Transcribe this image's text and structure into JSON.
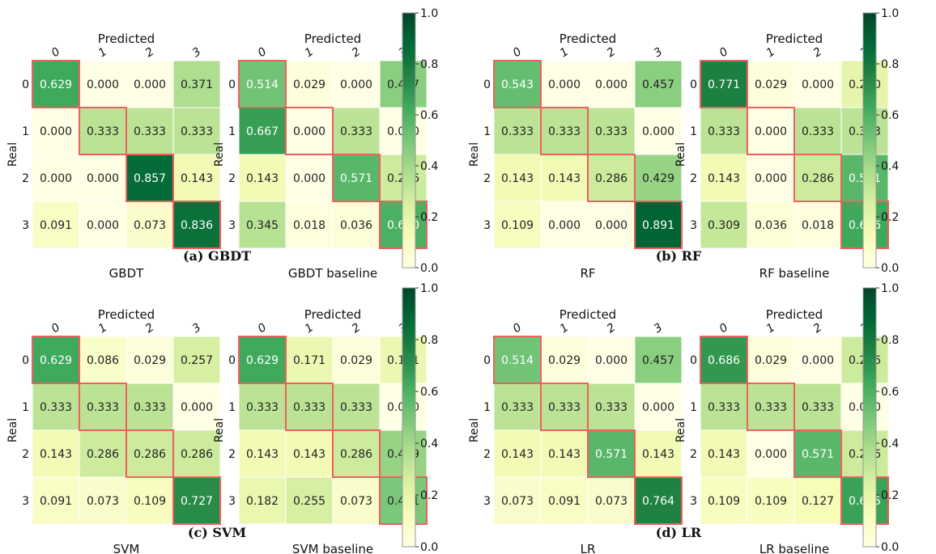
{
  "colorscale": {
    "low": "#ffffe5",
    "mid": "#78c679",
    "high": "#004529",
    "range": [
      0,
      1
    ],
    "ticks": [
      "0.0",
      "0.2",
      "0.4",
      "0.6",
      "0.8",
      "1.0"
    ],
    "tick_values": [
      0,
      0.2,
      0.4,
      0.6,
      0.8,
      1.0
    ]
  },
  "highlight_color": "#f06060",
  "chart_data": [
    {
      "type": "heatmap",
      "caption": "(a) GBDT",
      "matrices": [
        {
          "title": "GBDT",
          "xlabel": "Predicted",
          "ylabel": "Real",
          "x_ticks": [
            "0",
            "1",
            "2",
            "3"
          ],
          "y_ticks": [
            "0",
            "1",
            "2",
            "3"
          ],
          "values": [
            [
              0.629,
              0.0,
              0.0,
              0.371
            ],
            [
              0.0,
              0.333,
              0.333,
              0.333
            ],
            [
              0.0,
              0.0,
              0.857,
              0.143
            ],
            [
              0.091,
              0.0,
              0.073,
              0.836
            ]
          ],
          "labels": [
            [
              "0.629",
              "0.000",
              "0.000",
              "0.371"
            ],
            [
              "0.000",
              "0.333",
              "0.333",
              "0.333"
            ],
            [
              "0.000",
              "0.000",
              "0.857",
              "0.143"
            ],
            [
              "0.091",
              "0.000",
              "0.073",
              "0.836"
            ]
          ]
        },
        {
          "title": "GBDT baseline",
          "xlabel": "Predicted",
          "ylabel": "Real",
          "x_ticks": [
            "0",
            "1",
            "2",
            "3"
          ],
          "y_ticks": [
            "0",
            "1",
            "2",
            "3"
          ],
          "values": [
            [
              0.514,
              0.029,
              0.0,
              0.457
            ],
            [
              0.667,
              0.0,
              0.333,
              0.0
            ],
            [
              0.143,
              0.0,
              0.571,
              0.286
            ],
            [
              0.345,
              0.018,
              0.036,
              0.6
            ]
          ],
          "labels": [
            [
              "0.514",
              "0.029",
              "0.000",
              "0.457"
            ],
            [
              "0.667",
              "0.000",
              "0.333",
              "0.000"
            ],
            [
              "0.143",
              "0.000",
              "0.571",
              "0.286"
            ],
            [
              "0.345",
              "0.018",
              "0.036",
              "0.600"
            ]
          ]
        }
      ]
    },
    {
      "type": "heatmap",
      "caption": "(b) RF",
      "matrices": [
        {
          "title": "RF",
          "xlabel": "Predicted",
          "ylabel": "Real",
          "x_ticks": [
            "0",
            "1",
            "2",
            "3"
          ],
          "y_ticks": [
            "0",
            "1",
            "2",
            "3"
          ],
          "values": [
            [
              0.543,
              0.0,
              0.0,
              0.457
            ],
            [
              0.333,
              0.333,
              0.333,
              0.0
            ],
            [
              0.143,
              0.143,
              0.286,
              0.429
            ],
            [
              0.109,
              0.0,
              0.0,
              0.891
            ]
          ],
          "labels": [
            [
              "0.543",
              "0.000",
              "0.000",
              "0.457"
            ],
            [
              "0.333",
              "0.333",
              "0.333",
              "0.000"
            ],
            [
              "0.143",
              "0.143",
              "0.286",
              "0.429"
            ],
            [
              "0.109",
              "0.000",
              "0.000",
              "0.891"
            ]
          ]
        },
        {
          "title": "RF baseline",
          "xlabel": "Predicted",
          "ylabel": "Real",
          "x_ticks": [
            "0",
            "1",
            "2",
            "3"
          ],
          "y_ticks": [
            "0",
            "1",
            "2",
            "3"
          ],
          "values": [
            [
              0.771,
              0.029,
              0.0,
              0.2
            ],
            [
              0.333,
              0.0,
              0.333,
              0.333
            ],
            [
              0.143,
              0.0,
              0.286,
              0.571
            ],
            [
              0.309,
              0.036,
              0.018,
              0.636
            ]
          ],
          "labels": [
            [
              "0.771",
              "0.029",
              "0.000",
              "0.200"
            ],
            [
              "0.333",
              "0.000",
              "0.333",
              "0.333"
            ],
            [
              "0.143",
              "0.000",
              "0.286",
              "0.571"
            ],
            [
              "0.309",
              "0.036",
              "0.018",
              "0.636"
            ]
          ]
        }
      ]
    },
    {
      "type": "heatmap",
      "caption": "(c) SVM",
      "matrices": [
        {
          "title": "SVM",
          "xlabel": "Predicted",
          "ylabel": "Real",
          "x_ticks": [
            "0",
            "1",
            "2",
            "3"
          ],
          "y_ticks": [
            "0",
            "1",
            "2",
            "3"
          ],
          "values": [
            [
              0.629,
              0.086,
              0.029,
              0.257
            ],
            [
              0.333,
              0.333,
              0.333,
              0.0
            ],
            [
              0.143,
              0.286,
              0.286,
              0.286
            ],
            [
              0.091,
              0.073,
              0.109,
              0.727
            ]
          ],
          "labels": [
            [
              "0.629",
              "0.086",
              "0.029",
              "0.257"
            ],
            [
              "0.333",
              "0.333",
              "0.333",
              "0.000"
            ],
            [
              "0.143",
              "0.286",
              "0.286",
              "0.286"
            ],
            [
              "0.091",
              "0.073",
              "0.109",
              "0.727"
            ]
          ]
        },
        {
          "title": "SVM baseline",
          "xlabel": "Predicted",
          "ylabel": "Real",
          "x_ticks": [
            "0",
            "1",
            "2",
            "3"
          ],
          "y_ticks": [
            "0",
            "1",
            "2",
            "3"
          ],
          "values": [
            [
              0.629,
              0.171,
              0.029,
              0.171
            ],
            [
              0.333,
              0.333,
              0.333,
              0.0
            ],
            [
              0.143,
              0.143,
              0.286,
              0.429
            ],
            [
              0.182,
              0.255,
              0.073,
              0.491
            ]
          ],
          "labels": [
            [
              "0.629",
              "0.171",
              "0.029",
              "0.171"
            ],
            [
              "0.333",
              "0.333",
              "0.333",
              "0.000"
            ],
            [
              "0.143",
              "0.143",
              "0.286",
              "0.429"
            ],
            [
              "0.182",
              "0.255",
              "0.073",
              "0.491"
            ]
          ]
        }
      ]
    },
    {
      "type": "heatmap",
      "caption": "(d) LR",
      "matrices": [
        {
          "title": "LR",
          "xlabel": "Predicted",
          "ylabel": "Real",
          "x_ticks": [
            "0",
            "1",
            "2",
            "3"
          ],
          "y_ticks": [
            "0",
            "1",
            "2",
            "3"
          ],
          "values": [
            [
              0.514,
              0.029,
              0.0,
              0.457
            ],
            [
              0.333,
              0.333,
              0.333,
              0.0
            ],
            [
              0.143,
              0.143,
              0.571,
              0.143
            ],
            [
              0.073,
              0.091,
              0.073,
              0.764
            ]
          ],
          "labels": [
            [
              "0.514",
              "0.029",
              "0.000",
              "0.457"
            ],
            [
              "0.333",
              "0.333",
              "0.333",
              "0.000"
            ],
            [
              "0.143",
              "0.143",
              "0.571",
              "0.143"
            ],
            [
              "0.073",
              "0.091",
              "0.073",
              "0.764"
            ]
          ]
        },
        {
          "title": "LR baseline",
          "xlabel": "Predicted",
          "ylabel": "Real",
          "x_ticks": [
            "0",
            "1",
            "2",
            "3"
          ],
          "y_ticks": [
            "0",
            "1",
            "2",
            "3"
          ],
          "values": [
            [
              0.686,
              0.029,
              0.0,
              0.286
            ],
            [
              0.333,
              0.333,
              0.333,
              0.0
            ],
            [
              0.143,
              0.0,
              0.571,
              0.286
            ],
            [
              0.109,
              0.109,
              0.127,
              0.655
            ]
          ],
          "labels": [
            [
              "0.686",
              "0.029",
              "0.000",
              "0.286"
            ],
            [
              "0.333",
              "0.333",
              "0.333",
              "0.000"
            ],
            [
              "0.143",
              "0.000",
              "0.571",
              "0.286"
            ],
            [
              "0.109",
              "0.109",
              "0.127",
              "0.655"
            ]
          ]
        }
      ]
    }
  ]
}
